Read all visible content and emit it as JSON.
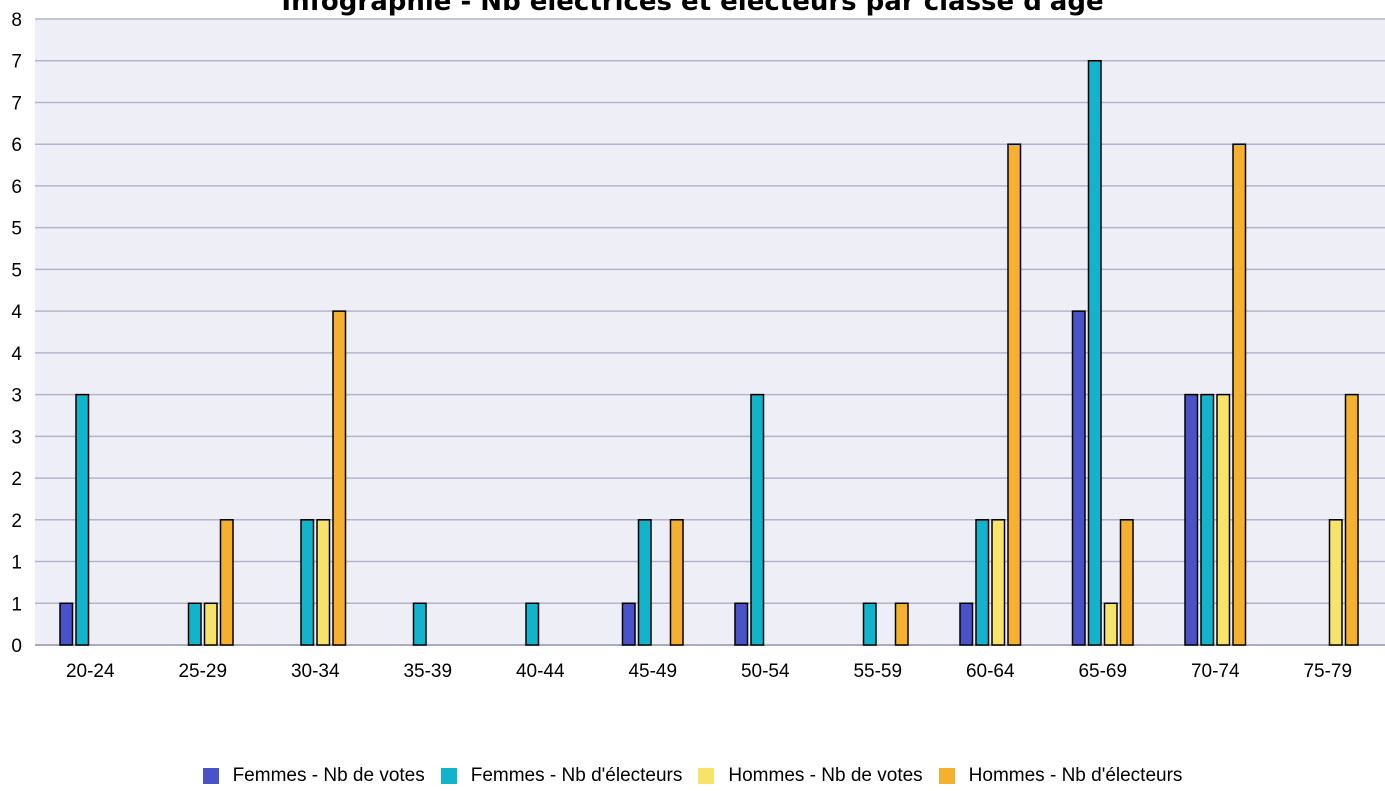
{
  "chart_data": {
    "type": "bar",
    "title": "Infographie - Nb électrices et électeurs par classe d'âge",
    "categories": [
      "20-24",
      "25-29",
      "30-34",
      "35-39",
      "40-44",
      "45-49",
      "50-54",
      "55-59",
      "60-64",
      "65-69",
      "70-74",
      "75-79"
    ],
    "ylim": [
      0,
      7.5
    ],
    "yticks": [
      0,
      0.5,
      1,
      1.5,
      2,
      2.5,
      3,
      3.5,
      4,
      4.5,
      5,
      5.5,
      6,
      6.5,
      7,
      7.5
    ],
    "ytick_labels": [
      "0",
      "1",
      "1",
      "2",
      "2",
      "3",
      "3",
      "4",
      "4",
      "5",
      "5",
      "6",
      "6",
      "7",
      "7",
      "8"
    ],
    "grid": true,
    "legend_position": "bottom",
    "show_value_labels": false,
    "series": [
      {
        "name": "Femmes - Nb de votes",
        "color": "#4a52c8",
        "values": [
          0.5,
          0,
          0,
          0,
          0,
          0.5,
          0.5,
          0,
          0.5,
          4,
          3,
          0
        ]
      },
      {
        "name": "Femmes - Nb d'électeurs",
        "color": "#12b4cc",
        "values": [
          3,
          0.5,
          1.5,
          0.5,
          0.5,
          1.5,
          3,
          0.5,
          1.5,
          7,
          3,
          0
        ]
      },
      {
        "name": "Hommes - Nb de votes",
        "color": "#f7e36a",
        "values": [
          0,
          0.5,
          1.5,
          0,
          0,
          0,
          0,
          0,
          1.5,
          0.5,
          3,
          1.5
        ]
      },
      {
        "name": "Hommes - Nb d'électeurs",
        "color": "#f5b030",
        "values": [
          0,
          1.5,
          4,
          0,
          0,
          1.5,
          0,
          0.5,
          6,
          1.5,
          6,
          3
        ]
      }
    ]
  },
  "colors": {
    "plot_background": "#eeeef6",
    "grid_line": "#b4b4cc",
    "bar_outline": "#000000"
  }
}
